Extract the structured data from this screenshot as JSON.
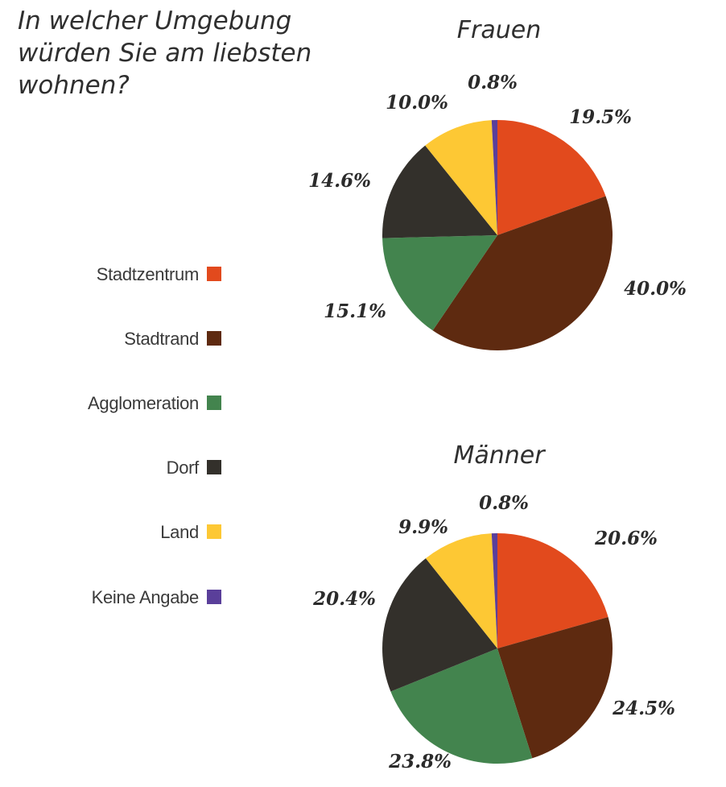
{
  "title": "In welcher Umgebung würden Sie am liebsten wohnen?",
  "chart_data": {
    "type": "pie",
    "legend": {
      "placement": "left",
      "entries": [
        {
          "name": "Stadtzentrum",
          "color": "#e24a1d"
        },
        {
          "name": "Stadtrand",
          "color": "#5e2a10"
        },
        {
          "name": "Agglomeration",
          "color": "#43844e"
        },
        {
          "name": "Dorf",
          "color": "#33302b"
        },
        {
          "name": "Land",
          "color": "#fdc834"
        },
        {
          "name": "Keine Angabe",
          "color": "#5a3f9a"
        }
      ]
    },
    "pies": [
      {
        "title": "Frauen",
        "categories": [
          "Stadtzentrum",
          "Stadtrand",
          "Agglomeration",
          "Dorf",
          "Land",
          "Keine Angabe"
        ],
        "values": [
          19.5,
          40.0,
          15.1,
          14.6,
          10.0,
          0.8
        ],
        "labels": [
          "19.5%",
          "40.0%",
          "15.1%",
          "14.6%",
          "10.0%",
          "0.8%"
        ]
      },
      {
        "title": "Männer",
        "categories": [
          "Stadtzentrum",
          "Stadtrand",
          "Agglomeration",
          "Dorf",
          "Land",
          "Keine Angabe"
        ],
        "values": [
          20.6,
          24.5,
          23.8,
          20.4,
          9.9,
          0.8
        ],
        "labels": [
          "20.6%",
          "24.5%",
          "23.8%",
          "20.4%",
          "9.9%",
          "0.8%"
        ]
      }
    ]
  }
}
